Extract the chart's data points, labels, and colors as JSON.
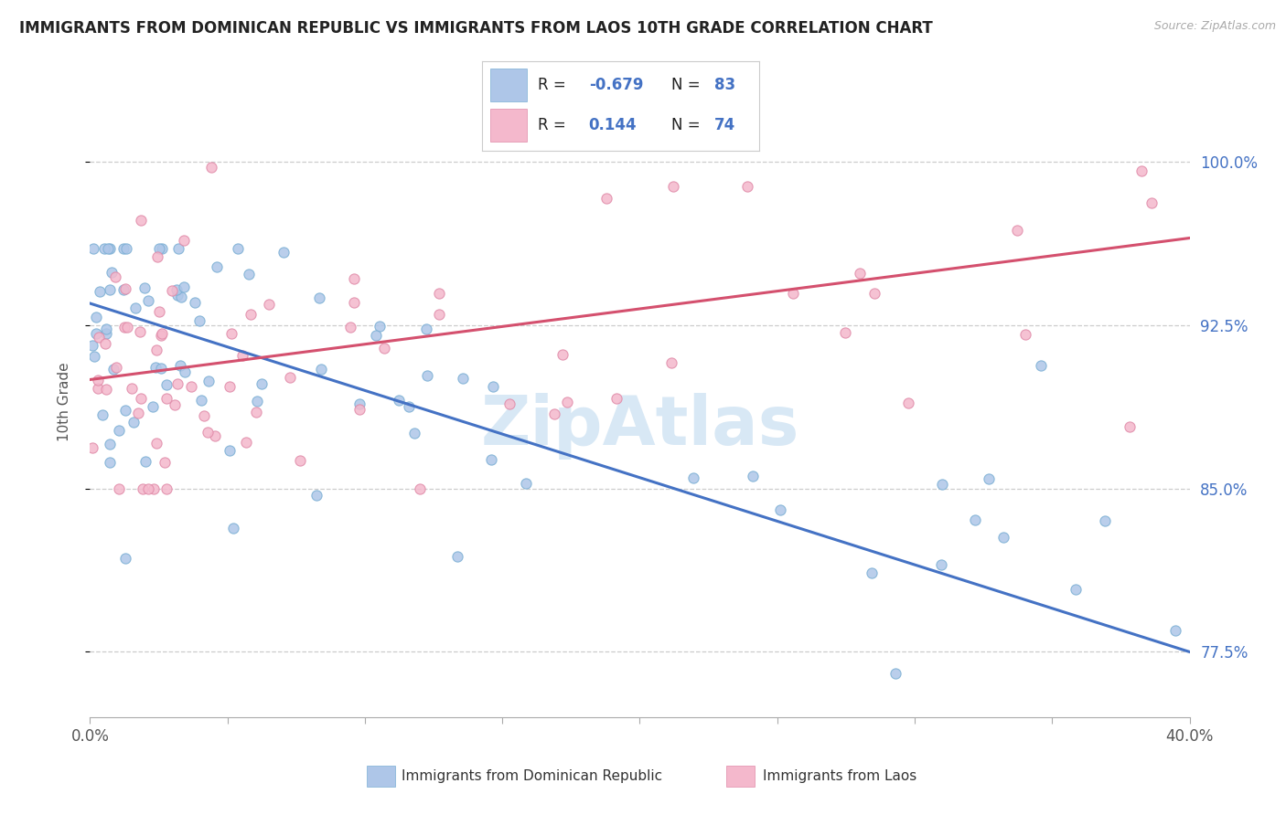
{
  "title": "IMMIGRANTS FROM DOMINICAN REPUBLIC VS IMMIGRANTS FROM LAOS 10TH GRADE CORRELATION CHART",
  "source_text": "Source: ZipAtlas.com",
  "ylabel": "10th Grade",
  "yticks": [
    77.5,
    85.0,
    92.5,
    100.0
  ],
  "ytick_labels": [
    "77.5%",
    "85.0%",
    "92.5%",
    "100.0%"
  ],
  "xticks": [
    0,
    5,
    10,
    15,
    20,
    25,
    30,
    35,
    40
  ],
  "xlim": [
    0.0,
    40.0
  ],
  "ylim": [
    74.5,
    103.5
  ],
  "blue_color": "#aec6e8",
  "blue_edge_color": "#7bafd4",
  "blue_line_color": "#4472c4",
  "pink_color": "#f4b8cc",
  "pink_edge_color": "#e08aa8",
  "pink_line_color": "#d4506e",
  "R_blue": -0.679,
  "N_blue": 83,
  "R_pink": 0.144,
  "N_pink": 74,
  "blue_line_y0": 93.5,
  "blue_line_y1": 77.5,
  "pink_line_y0": 90.0,
  "pink_line_y1": 96.5,
  "legend_labels": [
    "Immigrants from Dominican Republic",
    "Immigrants from Laos"
  ],
  "watermark_color": "#d8e8f5",
  "grid_color": "#cccccc"
}
